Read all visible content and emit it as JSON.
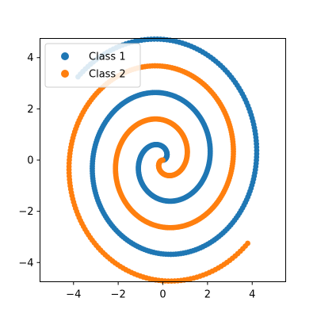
{
  "chart_data": {
    "type": "scatter",
    "title": "",
    "xlabel": "",
    "ylabel": "",
    "xlim": [
      -5.5,
      5.5
    ],
    "ylim": [
      -4.75,
      4.75
    ],
    "xticks": [
      -4,
      -2,
      0,
      2,
      4
    ],
    "yticks": [
      -4,
      -2,
      0,
      2,
      4
    ],
    "grid": false,
    "legend_position": "upper-left",
    "spiral_turns_radians": [
      0,
      15
    ],
    "series": [
      {
        "name": "Class 1",
        "color": "#1f77b4",
        "description": "Archimedean spiral r = t/3, point = (r·cos t, r·sin t), t from 0 to 15 rad"
      },
      {
        "name": "Class 2",
        "color": "#ff7f0e",
        "description": "Archimedean spiral r = t/3, point = (-r·cos t, -r·sin t), t from 0 to 15 rad"
      }
    ],
    "tick_labels": {
      "x": [
        "−4",
        "−2",
        "0",
        "2",
        "4"
      ],
      "y": [
        "−4",
        "−2",
        "0",
        "2",
        "4"
      ]
    }
  }
}
